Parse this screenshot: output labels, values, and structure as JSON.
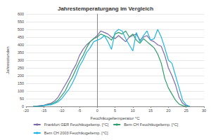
{
  "chart_data": {
    "type": "line",
    "title": "Jahrestemperaturgang im Vergleich",
    "x_label": "Feuchtkugeltemperatur °C",
    "y_label": "Jahresstunden",
    "x": [
      -18,
      -17,
      -16,
      -15,
      -14,
      -13,
      -12,
      -11,
      -10,
      -9,
      -8,
      -7,
      -6,
      -5,
      -4,
      -3,
      -2,
      -1,
      0,
      1,
      2,
      3,
      4,
      5,
      6,
      7,
      8,
      9,
      10,
      11,
      12,
      13,
      14,
      15,
      16,
      17,
      18,
      19,
      20,
      21,
      22,
      23,
      24,
      25,
      26
    ],
    "series": [
      {
        "name": "Frankfurt GER Feuchtkugeltemp. [°C]",
        "color": "#7e6aa6",
        "values": [
          0,
          2,
          5,
          8,
          15,
          20,
          35,
          60,
          100,
          140,
          180,
          230,
          270,
          330,
          370,
          400,
          420,
          440,
          460,
          490,
          480,
          470,
          450,
          440,
          460,
          440,
          420,
          450,
          460,
          470,
          430,
          450,
          460,
          430,
          420,
          400,
          390,
          330,
          250,
          200,
          140,
          60,
          20,
          5,
          0
        ]
      },
      {
        "name": "Bern CH Feuchtkugeltemp. [°C]",
        "color": "#2e9e6a",
        "values": [
          0,
          0,
          2,
          5,
          10,
          15,
          25,
          40,
          70,
          100,
          150,
          190,
          240,
          290,
          330,
          380,
          420,
          440,
          450,
          470,
          460,
          450,
          430,
          470,
          480,
          470,
          490,
          450,
          470,
          430,
          410,
          440,
          420,
          400,
          380,
          340,
          280,
          180,
          120,
          80,
          40,
          15,
          5,
          0,
          0
        ]
      },
      {
        "name": "Bern CH 2003 Feuchtkugeltemp. [°C]",
        "color": "#22b5e0",
        "values": [
          0,
          0,
          0,
          5,
          10,
          10,
          20,
          30,
          50,
          80,
          110,
          150,
          200,
          260,
          300,
          350,
          380,
          420,
          430,
          440,
          460,
          420,
          370,
          480,
          500,
          490,
          440,
          400,
          360,
          480,
          420,
          460,
          490,
          430,
          440,
          500,
          450,
          380,
          300,
          280,
          200,
          120,
          40,
          10,
          0
        ]
      }
    ],
    "xlim": [
      -20,
      30
    ],
    "xticks": [
      -20,
      -15,
      -10,
      -5,
      0,
      5,
      10,
      15,
      20,
      25,
      30
    ],
    "ylim": [
      0,
      600
    ],
    "yticks": [
      0,
      50,
      100,
      150,
      200,
      250,
      300,
      350,
      400,
      450,
      500,
      550,
      600
    ],
    "grid": true,
    "legend": "bottom"
  }
}
